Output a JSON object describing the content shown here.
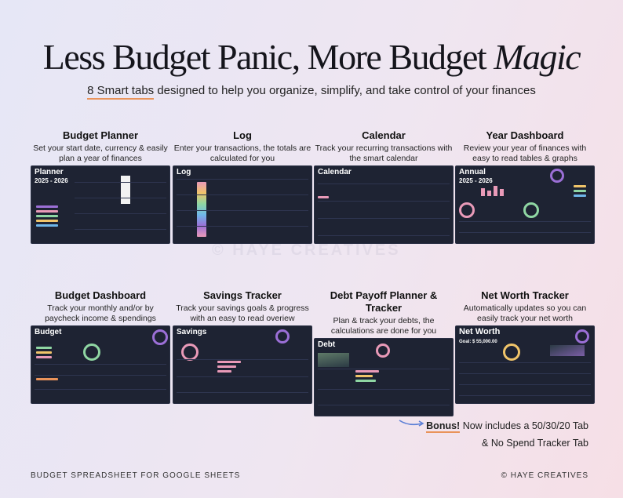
{
  "headline": {
    "part1": "Less Budget Panic, More Budget ",
    "italic": "Magic"
  },
  "subline": {
    "highlight": "8 Smart tabs",
    "rest": " designed to help you organize, simplify, and take control of your finances"
  },
  "cards": [
    {
      "title": "Budget Planner",
      "desc": "Set your start date, currency & easily plan a year of finances",
      "screen_title": "Planner",
      "screen_sub": "2025 - 2026"
    },
    {
      "title": "Log",
      "desc": "Enter your transactions, the totals are calculated for you",
      "screen_title": "Log",
      "screen_sub": ""
    },
    {
      "title": "Calendar",
      "desc": "Track your recurring transactions with the smart calendar",
      "screen_title": "Calendar",
      "screen_sub": ""
    },
    {
      "title": "Year Dashboard",
      "desc": "Review your year of finances with easy to read tables & graphs",
      "screen_title": "Annual",
      "screen_sub": "2025 - 2026"
    },
    {
      "title": "Budget Dashboard",
      "desc": "Track your monthly and/or by paycheck income & spendings",
      "screen_title": "Budget",
      "screen_sub": ""
    },
    {
      "title": "Savings Tracker",
      "desc": "Track your savings goals & progress with an easy to read overiew",
      "screen_title": "Savings",
      "screen_sub": ""
    },
    {
      "title": "Debt Payoff Planner & Tracker",
      "desc": "Plan & track your debts, the calculations are done for you",
      "screen_title": "Debt",
      "screen_sub": ""
    },
    {
      "title": "Net Worth Tracker",
      "desc": "Automatically updates so you can easily track your net worth",
      "screen_title": "Net Worth",
      "screen_sub": "Goal: $ 55,000.00"
    }
  ],
  "watermark": "© HAYE CREATIVES",
  "bonus": {
    "bold": "Bonus!",
    "line1": " Now includes a 50/30/20 Tab",
    "line2": "& No Spend Tracker Tab"
  },
  "footer": {
    "left": "BUDGET SPREADSHEET FOR GOOGLE SHEETS",
    "right": "© HAYE CREATIVES"
  },
  "colors": {
    "accent_underline": "#e9935a",
    "screen_bg": "#1e2333",
    "arrow": "#5b7fd6"
  }
}
